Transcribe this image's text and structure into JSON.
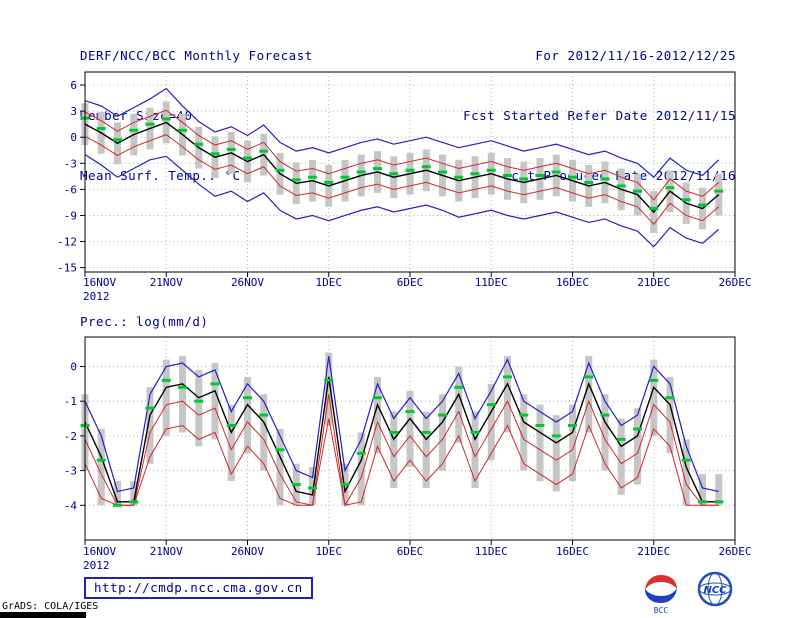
{
  "header": {
    "title": "DERF/NCC/BCC Monthly Forecast",
    "member_size": "Member Size=40",
    "forecast_range": "For 2012/11/16-2012/12/25",
    "refer_date": "Fcst Started Refer Date 2012/11/15",
    "produced_date": "Fcst Produced Date 2012/11/16"
  },
  "footer": {
    "url": "http://cmdp.ncc.cma.gov.cn",
    "credit": "GrADS: COLA/IGES"
  },
  "logos": {
    "bcc_label": "BCC",
    "ncc_label": "NCC"
  },
  "chart_data": [
    {
      "type": "line",
      "title": "Mean Surf. Temp.: °C",
      "xlabel": "",
      "ylabel": "°C",
      "ylim": [
        -15.5,
        7.5
      ],
      "yticks": [
        6,
        3,
        0,
        -3,
        -6,
        -9,
        -12,
        -15
      ],
      "x_range_days": 40,
      "x_ticks": [
        {
          "label": "16NOV",
          "day": 0,
          "sublabel": "2012"
        },
        {
          "label": "21NOV",
          "day": 5
        },
        {
          "label": "26NOV",
          "day": 10
        },
        {
          "label": "1DEC",
          "day": 15
        },
        {
          "label": "6DEC",
          "day": 20
        },
        {
          "label": "11DEC",
          "day": 25
        },
        {
          "label": "16DEC",
          "day": 30
        },
        {
          "label": "21DEC",
          "day": 35
        },
        {
          "label": "26DEC",
          "day": 40
        }
      ],
      "grid": true,
      "legend": "none",
      "series": [
        {
          "name": "spread-bars",
          "type": "bar",
          "color": "#c6c6c6",
          "hi": [
            3.9,
            2.9,
            1.7,
            2.7,
            3.4,
            4.1,
            2.7,
            1.2,
            0.1,
            0.6,
            -0.4,
            0.4,
            -1.8,
            -2.9,
            -2.6,
            -3.2,
            -2.6,
            -2.0,
            -1.6,
            -2.2,
            -1.8,
            -1.4,
            -2.0,
            -2.6,
            -2.2,
            -1.8,
            -2.4,
            -2.8,
            -2.4,
            -2.0,
            -2.6,
            -3.2,
            -2.8,
            -3.6,
            -4.2,
            -6.2,
            -3.8,
            -5.2,
            -5.8,
            -4.2
          ],
          "lo": [
            -0.9,
            -1.9,
            -3.1,
            -2.1,
            -1.4,
            -0.7,
            -2.1,
            -3.6,
            -4.7,
            -4.2,
            -5.2,
            -4.4,
            -6.6,
            -7.7,
            -7.4,
            -8.0,
            -7.4,
            -6.8,
            -6.4,
            -7.0,
            -6.6,
            -6.2,
            -6.8,
            -7.4,
            -7.0,
            -6.6,
            -7.2,
            -7.6,
            -7.2,
            -6.8,
            -7.4,
            -8.0,
            -7.6,
            -8.4,
            -9.0,
            -11.0,
            -8.6,
            -10.0,
            -10.6,
            -9.0
          ]
        },
        {
          "name": "max-line",
          "type": "line",
          "color": "#2020c8",
          "width": 1.2,
          "values": [
            4.2,
            3.6,
            2.4,
            3.4,
            4.4,
            5.6,
            3.6,
            1.8,
            0.6,
            1.2,
            0.2,
            1.4,
            -0.6,
            -1.6,
            -1.2,
            -1.8,
            -1.2,
            -0.6,
            -0.2,
            -0.8,
            -0.4,
            0.0,
            -0.6,
            -1.2,
            -0.8,
            -0.4,
            -1.0,
            -1.6,
            -1.2,
            -0.8,
            -1.4,
            -2.0,
            -1.6,
            -2.4,
            -3.0,
            -4.6,
            -2.4,
            -3.8,
            -4.4,
            -2.6
          ]
        },
        {
          "name": "min-line",
          "type": "line",
          "color": "#2020c8",
          "width": 1.2,
          "values": [
            -2.0,
            -3.2,
            -4.6,
            -3.6,
            -2.6,
            -2.2,
            -3.8,
            -5.4,
            -6.8,
            -6.2,
            -7.4,
            -6.4,
            -8.4,
            -9.4,
            -9.0,
            -9.6,
            -9.0,
            -8.4,
            -8.0,
            -8.6,
            -8.2,
            -7.8,
            -8.4,
            -9.2,
            -8.8,
            -8.4,
            -9.0,
            -9.4,
            -9.0,
            -8.6,
            -9.2,
            -9.8,
            -9.4,
            -10.2,
            -10.8,
            -12.6,
            -10.4,
            -11.6,
            -12.2,
            -10.6
          ]
        },
        {
          "name": "upper-red-line",
          "type": "line",
          "color": "#d02828",
          "width": 1,
          "values": [
            2.9,
            1.9,
            0.7,
            1.7,
            2.4,
            3.1,
            1.7,
            0.2,
            -0.9,
            -0.4,
            -1.4,
            -0.6,
            -2.8,
            -3.9,
            -3.6,
            -4.2,
            -3.6,
            -3.0,
            -2.6,
            -3.2,
            -2.8,
            -2.4,
            -3.0,
            -3.6,
            -3.2,
            -2.8,
            -3.4,
            -3.8,
            -3.4,
            -3.0,
            -3.6,
            -4.2,
            -3.8,
            -4.6,
            -5.2,
            -7.2,
            -4.8,
            -6.2,
            -6.8,
            -5.2
          ]
        },
        {
          "name": "lower-red-line",
          "type": "line",
          "color": "#d02828",
          "width": 1,
          "values": [
            0.1,
            -0.9,
            -2.1,
            -1.1,
            -0.4,
            0.3,
            -1.1,
            -2.6,
            -3.7,
            -3.2,
            -4.2,
            -3.4,
            -5.6,
            -6.7,
            -6.4,
            -7.0,
            -6.4,
            -5.8,
            -5.4,
            -6.0,
            -5.6,
            -5.2,
            -5.8,
            -6.4,
            -6.0,
            -5.6,
            -6.2,
            -6.6,
            -6.2,
            -5.8,
            -6.4,
            -7.0,
            -6.6,
            -7.4,
            -8.0,
            -10.0,
            -7.6,
            -9.0,
            -9.6,
            -8.0
          ]
        },
        {
          "name": "mean-line",
          "type": "line",
          "color": "#000000",
          "width": 1.4,
          "values": [
            1.5,
            0.5,
            -0.7,
            0.3,
            1.0,
            1.7,
            0.3,
            -1.2,
            -2.3,
            -1.8,
            -2.8,
            -2.0,
            -4.2,
            -5.3,
            -5.0,
            -5.6,
            -5.0,
            -4.4,
            -4.0,
            -4.6,
            -4.2,
            -3.8,
            -4.4,
            -5.0,
            -4.6,
            -4.2,
            -4.8,
            -5.2,
            -4.8,
            -4.4,
            -5.0,
            -5.6,
            -5.2,
            -6.0,
            -6.6,
            -8.6,
            -6.2,
            -7.6,
            -8.2,
            -6.6
          ]
        },
        {
          "name": "green-dash-markers",
          "type": "dash",
          "color": "#00c832",
          "values": [
            2.2,
            1.0,
            -0.3,
            0.8,
            1.5,
            2.1,
            0.8,
            -0.8,
            -1.9,
            -1.4,
            -2.4,
            -1.6,
            -3.8,
            -4.9,
            -4.6,
            -5.2,
            -4.6,
            -4.0,
            -3.6,
            -4.2,
            -3.8,
            -3.4,
            -4.0,
            -4.6,
            -4.2,
            -3.8,
            -4.4,
            -4.8,
            -4.4,
            -4.0,
            -4.6,
            -5.2,
            -4.8,
            -5.6,
            -6.2,
            -8.2,
            -5.8,
            -7.2,
            -7.8,
            -6.2
          ]
        }
      ]
    },
    {
      "type": "line",
      "title": "Prec.: log(mm/d)",
      "xlabel": "",
      "ylabel": "log(mm/d)",
      "ylim": [
        -5,
        0.85
      ],
      "yticks": [
        0,
        -1,
        -2,
        -3,
        -4
      ],
      "x_range_days": 40,
      "x_ticks": [
        {
          "label": "16NOV",
          "day": 0,
          "sublabel": "2012"
        },
        {
          "label": "21NOV",
          "day": 5
        },
        {
          "label": "26NOV",
          "day": 10
        },
        {
          "label": "1DEC",
          "day": 15
        },
        {
          "label": "6DEC",
          "day": 20
        },
        {
          "label": "11DEC",
          "day": 25
        },
        {
          "label": "16DEC",
          "day": 30
        },
        {
          "label": "21DEC",
          "day": 35
        },
        {
          "label": "26DEC",
          "day": 40
        }
      ],
      "grid": true,
      "legend": "none",
      "series": [
        {
          "name": "spread-bars",
          "type": "bar",
          "color": "#c6c6c6",
          "hi": [
            -0.8,
            -1.8,
            -3.3,
            -3.3,
            -0.6,
            0.2,
            0.3,
            -0.1,
            0.1,
            -1.1,
            -0.3,
            -0.8,
            -1.8,
            -2.8,
            -2.9,
            0.4,
            -2.8,
            -1.9,
            -0.3,
            -1.3,
            -0.7,
            -1.3,
            -0.8,
            0.0,
            -1.3,
            -0.5,
            0.3,
            -0.8,
            -1.1,
            -1.4,
            -1.1,
            0.3,
            -0.8,
            -1.5,
            -1.2,
            0.2,
            -0.3,
            -2.1,
            -3.1,
            -3.1
          ],
          "lo": [
            -3.0,
            -4.0,
            -4.0,
            -4.0,
            -2.8,
            -2.0,
            -1.9,
            -2.3,
            -2.1,
            -3.3,
            -2.5,
            -3.0,
            -4.0,
            -4.0,
            -4.0,
            -1.7,
            -4.0,
            -4.0,
            -2.5,
            -3.5,
            -2.9,
            -3.5,
            -3.0,
            -2.2,
            -3.5,
            -2.7,
            -1.9,
            -3.0,
            -3.3,
            -3.6,
            -3.3,
            -1.9,
            -3.0,
            -3.7,
            -3.4,
            -2.0,
            -2.5,
            -4.0,
            -4.0,
            -4.0
          ]
        },
        {
          "name": "max-line",
          "type": "line",
          "color": "#2020c8",
          "width": 1.2,
          "values": [
            -1.0,
            -2.0,
            -3.6,
            -3.5,
            -0.8,
            0.0,
            0.1,
            -0.3,
            -0.1,
            -1.3,
            -0.5,
            -1.0,
            -2.0,
            -3.0,
            -3.2,
            0.3,
            -3.0,
            -2.1,
            -0.5,
            -1.5,
            -0.9,
            -1.5,
            -1.0,
            -0.2,
            -1.5,
            -0.7,
            0.2,
            -1.0,
            -1.3,
            -1.6,
            -1.3,
            0.1,
            -1.0,
            -1.7,
            -1.4,
            0.0,
            -0.5,
            -2.3,
            -3.5,
            -3.6
          ]
        },
        {
          "name": "upper-red-line",
          "type": "line",
          "color": "#d02828",
          "width": 1,
          "values": [
            -2.1,
            -3.1,
            -4.0,
            -4.0,
            -1.9,
            -1.1,
            -1.0,
            -1.4,
            -1.2,
            -2.4,
            -1.6,
            -2.1,
            -3.1,
            -3.9,
            -4.0,
            -0.8,
            -4.0,
            -3.2,
            -1.6,
            -2.6,
            -2.0,
            -2.6,
            -2.1,
            -1.3,
            -2.6,
            -1.8,
            -1.0,
            -2.1,
            -2.4,
            -2.7,
            -2.4,
            -1.0,
            -2.1,
            -2.8,
            -2.5,
            -1.1,
            -1.6,
            -3.4,
            -4.0,
            -4.0
          ]
        },
        {
          "name": "lower-red-line",
          "type": "line",
          "color": "#d02828",
          "width": 1,
          "values": [
            -2.8,
            -3.8,
            -4.0,
            -4.0,
            -2.6,
            -1.8,
            -1.7,
            -2.1,
            -1.9,
            -3.1,
            -2.3,
            -2.8,
            -3.8,
            -4.0,
            -4.0,
            -1.5,
            -4.0,
            -3.9,
            -2.3,
            -3.3,
            -2.7,
            -3.3,
            -2.8,
            -2.0,
            -3.3,
            -2.5,
            -1.7,
            -2.8,
            -3.1,
            -3.4,
            -3.1,
            -1.7,
            -2.8,
            -3.5,
            -3.2,
            -1.8,
            -2.3,
            -4.0,
            -4.0,
            -4.0
          ]
        },
        {
          "name": "mean-line",
          "type": "line",
          "color": "#000000",
          "width": 1.4,
          "values": [
            -1.6,
            -2.6,
            -3.9,
            -3.9,
            -1.4,
            -0.6,
            -0.5,
            -0.9,
            -0.7,
            -1.9,
            -1.1,
            -1.6,
            -2.6,
            -3.6,
            -3.7,
            -0.3,
            -3.6,
            -2.7,
            -1.1,
            -2.1,
            -1.5,
            -2.1,
            -1.6,
            -0.8,
            -2.1,
            -1.3,
            -0.5,
            -1.6,
            -1.9,
            -2.2,
            -1.9,
            -0.5,
            -1.6,
            -2.3,
            -2.0,
            -0.6,
            -1.1,
            -2.9,
            -3.9,
            -3.9
          ]
        },
        {
          "name": "green-dash-markers",
          "type": "dash",
          "color": "#00c832",
          "values": [
            -1.7,
            -2.7,
            -4.0,
            -3.9,
            -1.2,
            -0.4,
            -0.6,
            -1.0,
            -0.5,
            -1.7,
            -0.9,
            -1.4,
            -2.4,
            -3.4,
            -3.5,
            -0.4,
            -3.4,
            -2.5,
            -0.9,
            -1.9,
            -1.3,
            -1.9,
            -1.4,
            -0.6,
            -1.9,
            -1.1,
            -0.3,
            -1.4,
            -1.7,
            -2.0,
            -1.7,
            -0.3,
            -1.4,
            -2.1,
            -1.8,
            -0.4,
            -0.9,
            -2.7,
            -3.9,
            -3.9
          ]
        }
      ]
    }
  ]
}
